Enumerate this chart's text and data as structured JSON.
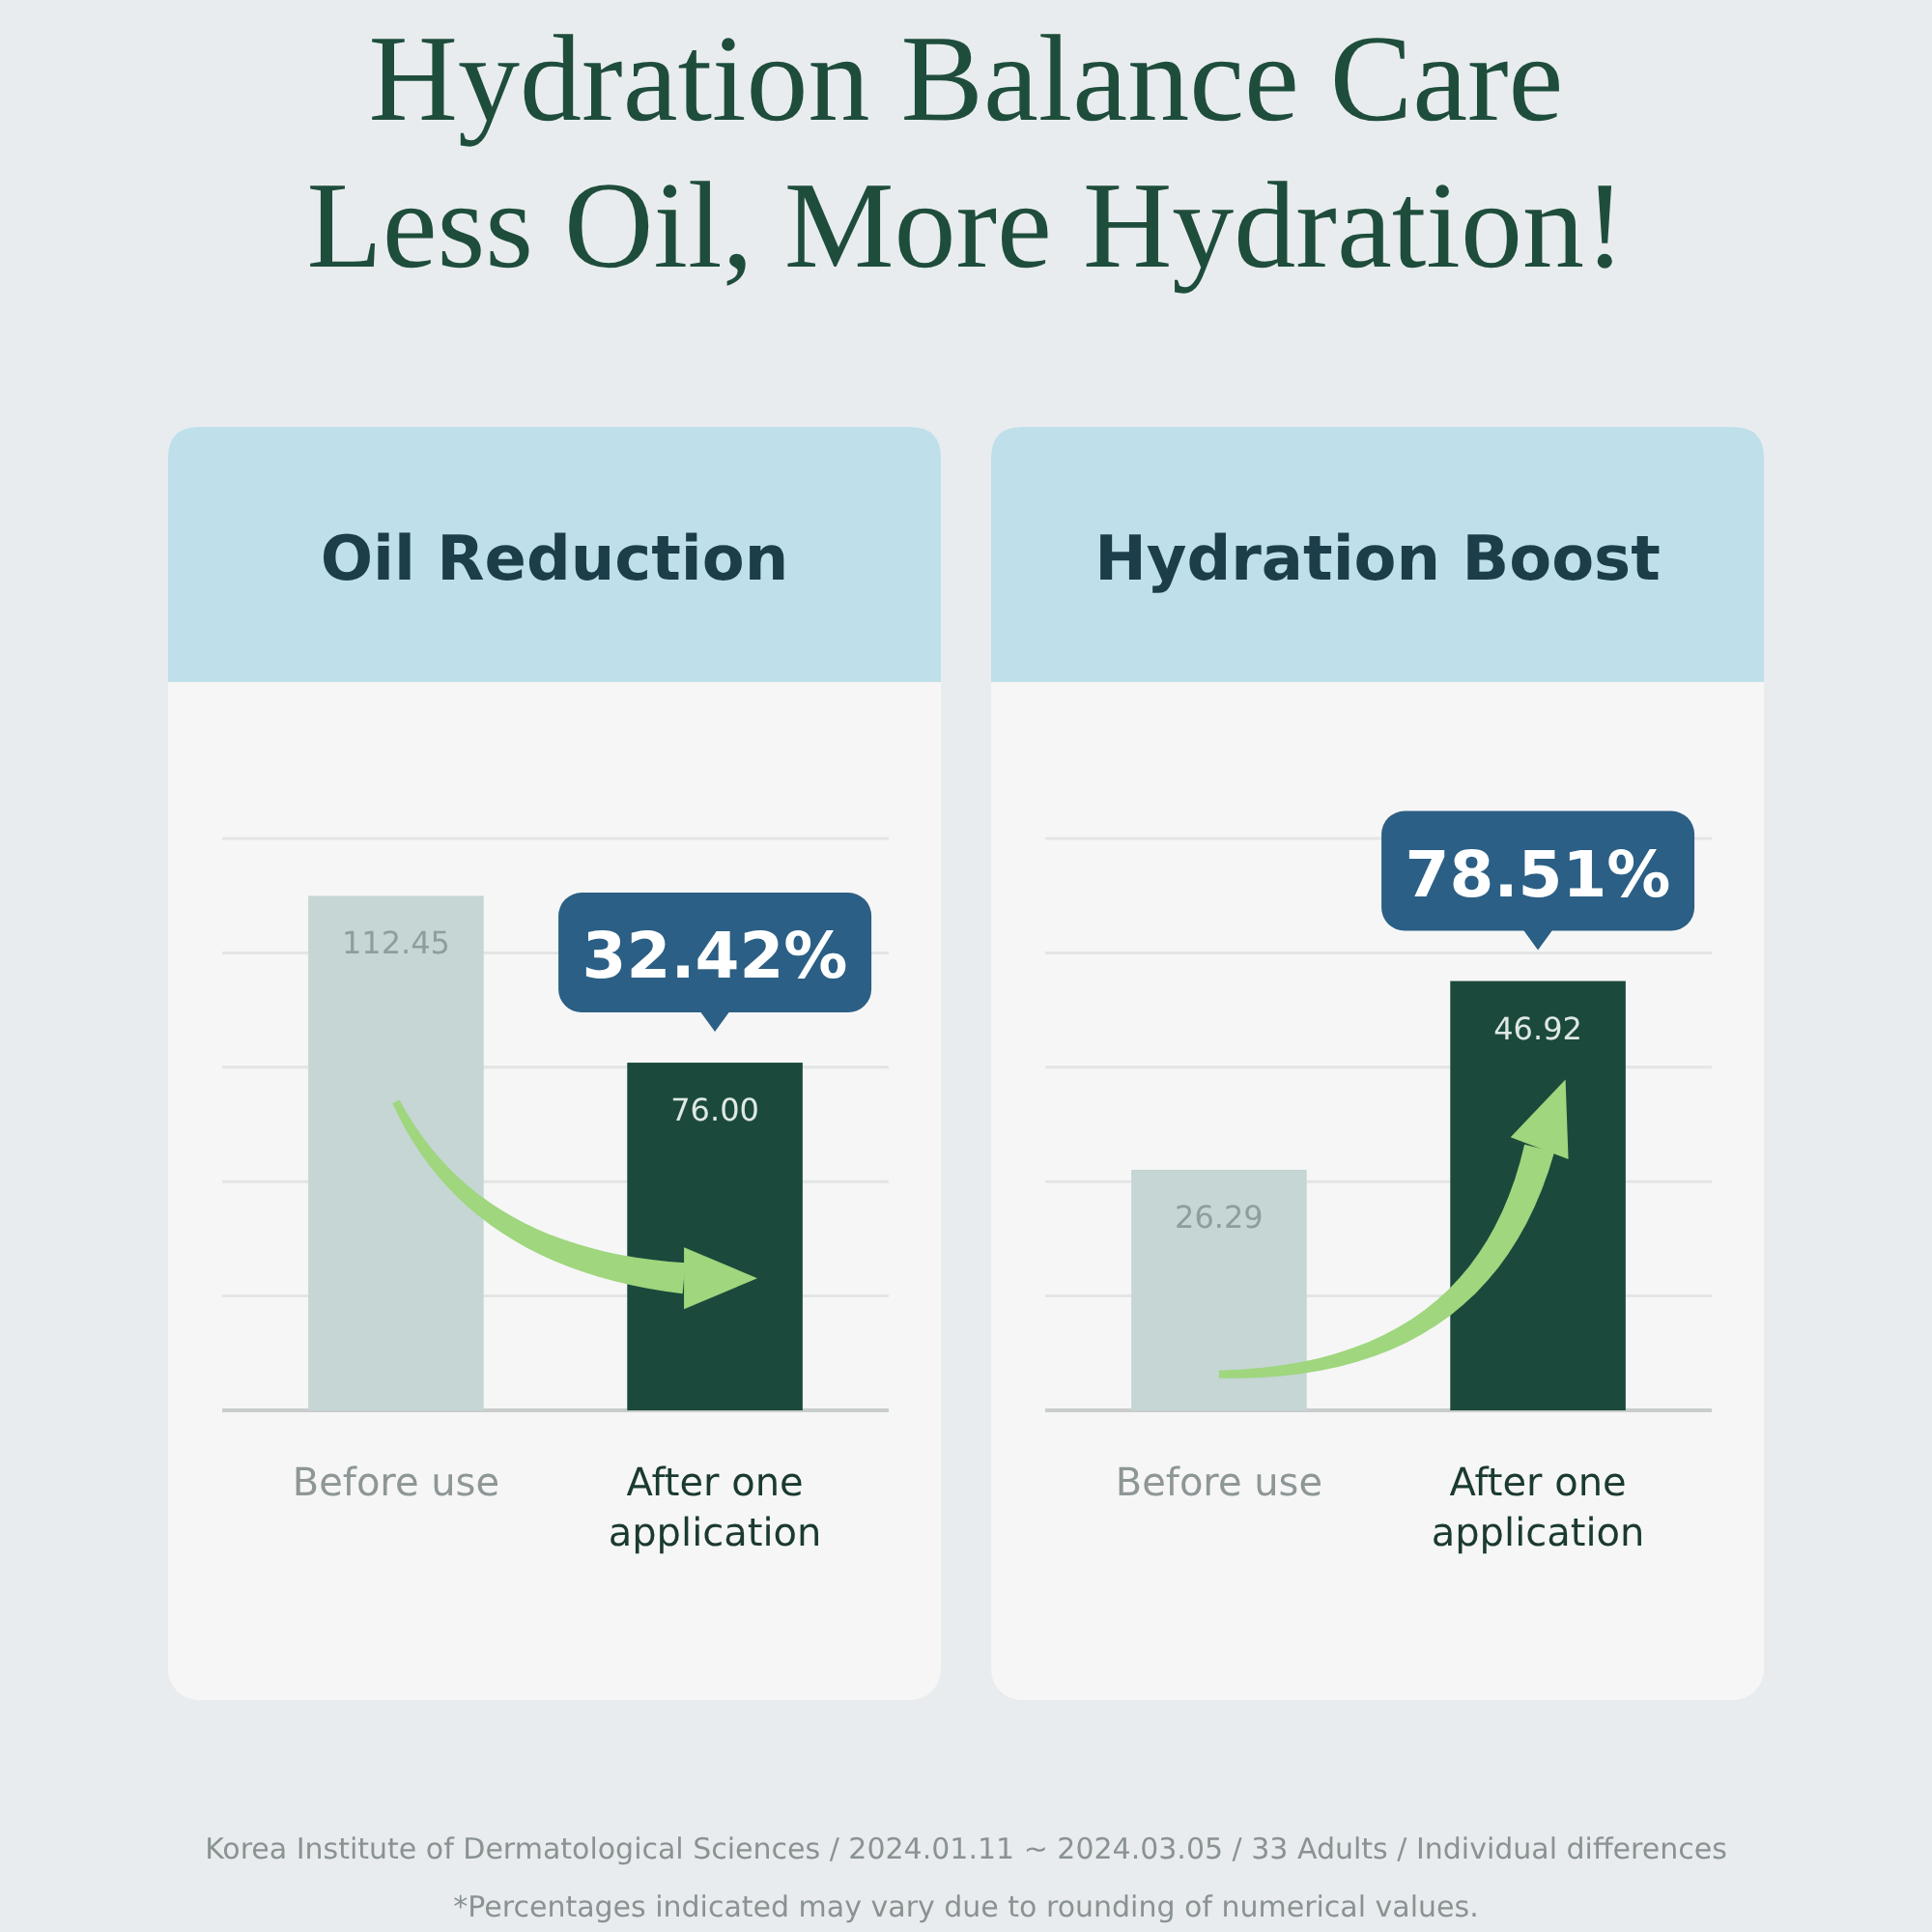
{
  "chart_data": [
    {
      "type": "other",
      "title": "Hydration Balance Care\nLess Oil, More Hydration!"
    },
    {
      "type": "bar",
      "title": "Oil Reduction",
      "categories": [
        "Before use",
        "After one application"
      ],
      "values": [
        112.45,
        76.0
      ],
      "colors": [
        "#c5d6d4",
        "#1b4a3c"
      ],
      "data_labels": true,
      "value_labels": [
        "112.45",
        "76.00"
      ],
      "ylim": [
        0,
        125
      ],
      "yticks": [
        {
          "value": 0,
          "label": null
        },
        {
          "value": 25,
          "label": null
        },
        {
          "value": 50,
          "label": null
        },
        {
          "value": 75,
          "label": null
        },
        {
          "value": 100,
          "label": null
        },
        {
          "value": 125,
          "label": null
        }
      ],
      "tick_labels": false,
      "grid": "y",
      "annotations": [
        {
          "text": "32.42%",
          "x": "After one application",
          "y": 76.0
        }
      ]
    },
    {
      "type": "bar",
      "title": "Hydration Boost",
      "categories": [
        "Before use",
        "After one application"
      ],
      "values": [
        26.29,
        46.92
      ],
      "colors": [
        "#c5d6d4",
        "#1b4a3c"
      ],
      "data_labels": true,
      "value_labels": [
        "26.29",
        "46.92"
      ],
      "ylim": [
        0,
        62.5
      ],
      "yticks": [
        {
          "value": 0,
          "label": null
        },
        {
          "value": 12.5,
          "label": null
        },
        {
          "value": 25,
          "label": null
        },
        {
          "value": 37.5,
          "label": null
        },
        {
          "value": 50,
          "label": null
        },
        {
          "value": 62.5,
          "label": null
        }
      ],
      "tick_labels": false,
      "grid": "y",
      "annotations": [
        {
          "text": "78.51%",
          "x": "After one application",
          "y": 46.92
        }
      ]
    },
    {
      "type": "other",
      "annotations": [
        "Korea Institute of Dermatological Sciences / 2024.01.11 ~ 2024.03.05 / 33 Adults / Individual differences",
        "*Percentages indicated may vary due to rounding of numerical values."
      ]
    }
  ]
}
